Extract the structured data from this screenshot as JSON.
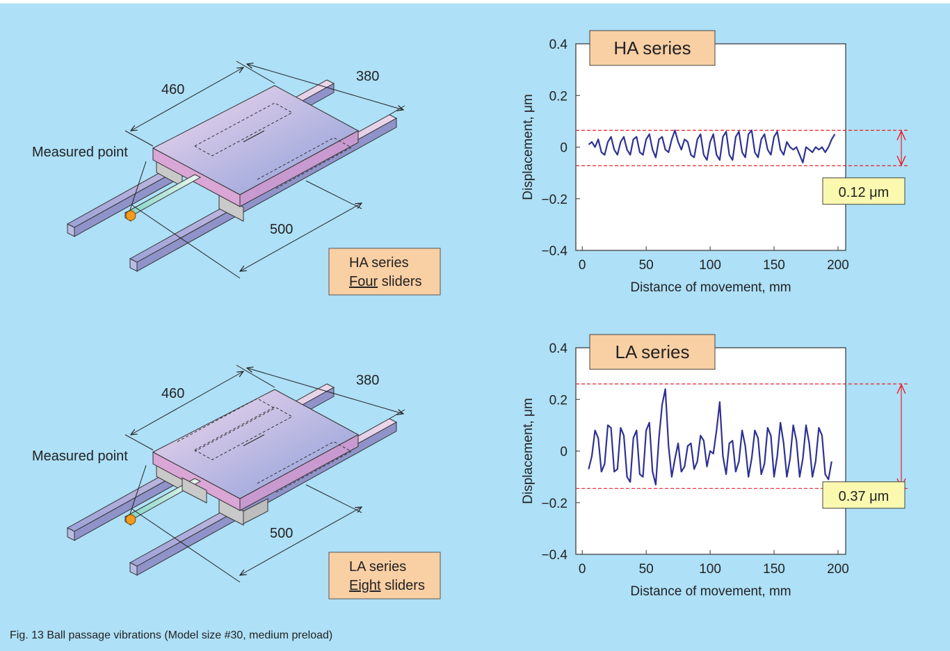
{
  "diagrams": [
    {
      "dims": [
        460,
        380,
        500
      ],
      "measured_point": "Measured point",
      "series": "HA series",
      "count": "Four",
      "count_unit": "sliders"
    },
    {
      "dims": [
        460,
        380,
        500
      ],
      "measured_point": "Measured point",
      "series": "LA series",
      "count": "Eight",
      "count_unit": "sliders"
    }
  ],
  "caption": "Fig. 13  Ball passage vibrations (Model size #30, medium preload)",
  "chart_data": [
    {
      "type": "line",
      "title": "HA series",
      "x_label": "Distance of movement, mm",
      "y_label": "Displacement, μm",
      "color": "#2e3192",
      "xlim": [
        -5,
        206
      ],
      "xticks": [
        0,
        50,
        100,
        150,
        200
      ],
      "ylim": [
        -0.4,
        0.4
      ],
      "yticks": [
        {
          "value": -0.4,
          "label": "−0.4"
        },
        {
          "value": -0.2,
          "label": "−0.2"
        },
        0,
        0.2,
        0.4
      ],
      "reference_lines": [
        0.065,
        -0.072
      ],
      "reference_color": "#e8202a",
      "range_label": "0.12 μm",
      "x": [
        5,
        7.5,
        10,
        12.5,
        15,
        17.5,
        20,
        22.5,
        25,
        27.5,
        30,
        32.5,
        35,
        37.5,
        40,
        42.5,
        45,
        47.5,
        50,
        52.5,
        55,
        57.5,
        60,
        62.5,
        65,
        67.5,
        70,
        72.5,
        75,
        77.5,
        80,
        82.5,
        85,
        87.5,
        90,
        92.5,
        95,
        97.5,
        100,
        102.5,
        105,
        107.5,
        110,
        112.5,
        115,
        117.5,
        120,
        122.5,
        125,
        127.5,
        130,
        132.5,
        135,
        137.5,
        140,
        142.5,
        145,
        147.5,
        150,
        152.5,
        155,
        157.5,
        160,
        162.5,
        165,
        167.5,
        170,
        172.5,
        175,
        177.5,
        180,
        182.5,
        185,
        187.5,
        190,
        192.5,
        195,
        197.5
      ],
      "values": [
        0.01,
        0.02,
        0.0,
        0.03,
        -0.02,
        -0.03,
        0.02,
        0.04,
        -0.01,
        -0.03,
        0.02,
        0.04,
        -0.01,
        -0.03,
        0.03,
        0.04,
        -0.02,
        -0.03,
        0.03,
        0.05,
        -0.01,
        -0.04,
        0.03,
        0.04,
        -0.01,
        -0.02,
        0.03,
        0.065,
        0.02,
        -0.01,
        0.03,
        0.02,
        -0.03,
        -0.04,
        0.03,
        0.05,
        -0.03,
        -0.05,
        0.02,
        0.05,
        -0.03,
        -0.05,
        0.04,
        0.06,
        -0.03,
        -0.05,
        0.04,
        0.06,
        -0.02,
        -0.04,
        0.05,
        0.065,
        -0.02,
        -0.04,
        0.03,
        0.05,
        -0.01,
        -0.03,
        0.04,
        0.06,
        -0.01,
        -0.03,
        0.02,
        0.0,
        -0.01,
        0.0,
        -0.03,
        -0.06,
        0.0,
        -0.01,
        -0.02,
        0.0,
        -0.01,
        0.0,
        -0.02,
        0.0,
        0.03,
        0.05
      ]
    },
    {
      "type": "line",
      "title": "LA series",
      "x_label": "Distance of movement, mm",
      "y_label": "Displacement, μm",
      "color": "#2e3192",
      "xlim": [
        -5,
        206
      ],
      "xticks": [
        0,
        50,
        100,
        150,
        200
      ],
      "ylim": [
        -0.4,
        0.4
      ],
      "yticks": [
        {
          "value": -0.4,
          "label": "−0.4"
        },
        {
          "value": -0.2,
          "label": "−0.2"
        },
        0,
        0.2,
        0.4
      ],
      "reference_lines": [
        0.26,
        -0.145
      ],
      "reference_color": "#e8202a",
      "range_label": "0.37 μm",
      "x": [
        5,
        7.5,
        10,
        12.5,
        15,
        17.5,
        20,
        22.5,
        25,
        27.5,
        30,
        32.5,
        35,
        37.5,
        40,
        42.5,
        45,
        47.5,
        50,
        52.5,
        55,
        57.5,
        60,
        62.5,
        65,
        67.5,
        70,
        72.5,
        75,
        77.5,
        80,
        82.5,
        85,
        87.5,
        90,
        92.5,
        95,
        97.5,
        100,
        102.5,
        105,
        107.5,
        110,
        112.5,
        115,
        117.5,
        120,
        122.5,
        125,
        127.5,
        130,
        132.5,
        135,
        137.5,
        140,
        142.5,
        145,
        147.5,
        150,
        152.5,
        155,
        157.5,
        160,
        162.5,
        165,
        167.5,
        170,
        172.5,
        175,
        177.5,
        180,
        182.5,
        185,
        187.5,
        190,
        192.5,
        195
      ],
      "values": [
        -0.07,
        -0.02,
        0.08,
        0.05,
        -0.08,
        -0.05,
        0.1,
        0.09,
        -0.08,
        -0.07,
        0.09,
        0.06,
        -0.1,
        -0.12,
        0.05,
        0.08,
        -0.09,
        -0.1,
        0.08,
        0.11,
        -0.08,
        -0.13,
        0.05,
        0.18,
        0.24,
        0.02,
        -0.1,
        -0.03,
        0.03,
        -0.08,
        -0.06,
        0.02,
        0.03,
        -0.07,
        -0.04,
        0.06,
        0.04,
        -0.06,
        0.0,
        -0.01,
        0.08,
        0.19,
        -0.02,
        -0.09,
        0.03,
        0.04,
        -0.08,
        -0.04,
        0.08,
        0.02,
        -0.1,
        -0.03,
        0.08,
        0.05,
        -0.09,
        -0.05,
        0.09,
        0.06,
        -0.1,
        -0.02,
        0.11,
        0.03,
        -0.1,
        -0.03,
        0.1,
        0.04,
        -0.1,
        -0.03,
        0.1,
        0.03,
        -0.1,
        -0.04,
        0.09,
        0.06,
        -0.09,
        -0.11,
        -0.04
      ]
    }
  ]
}
